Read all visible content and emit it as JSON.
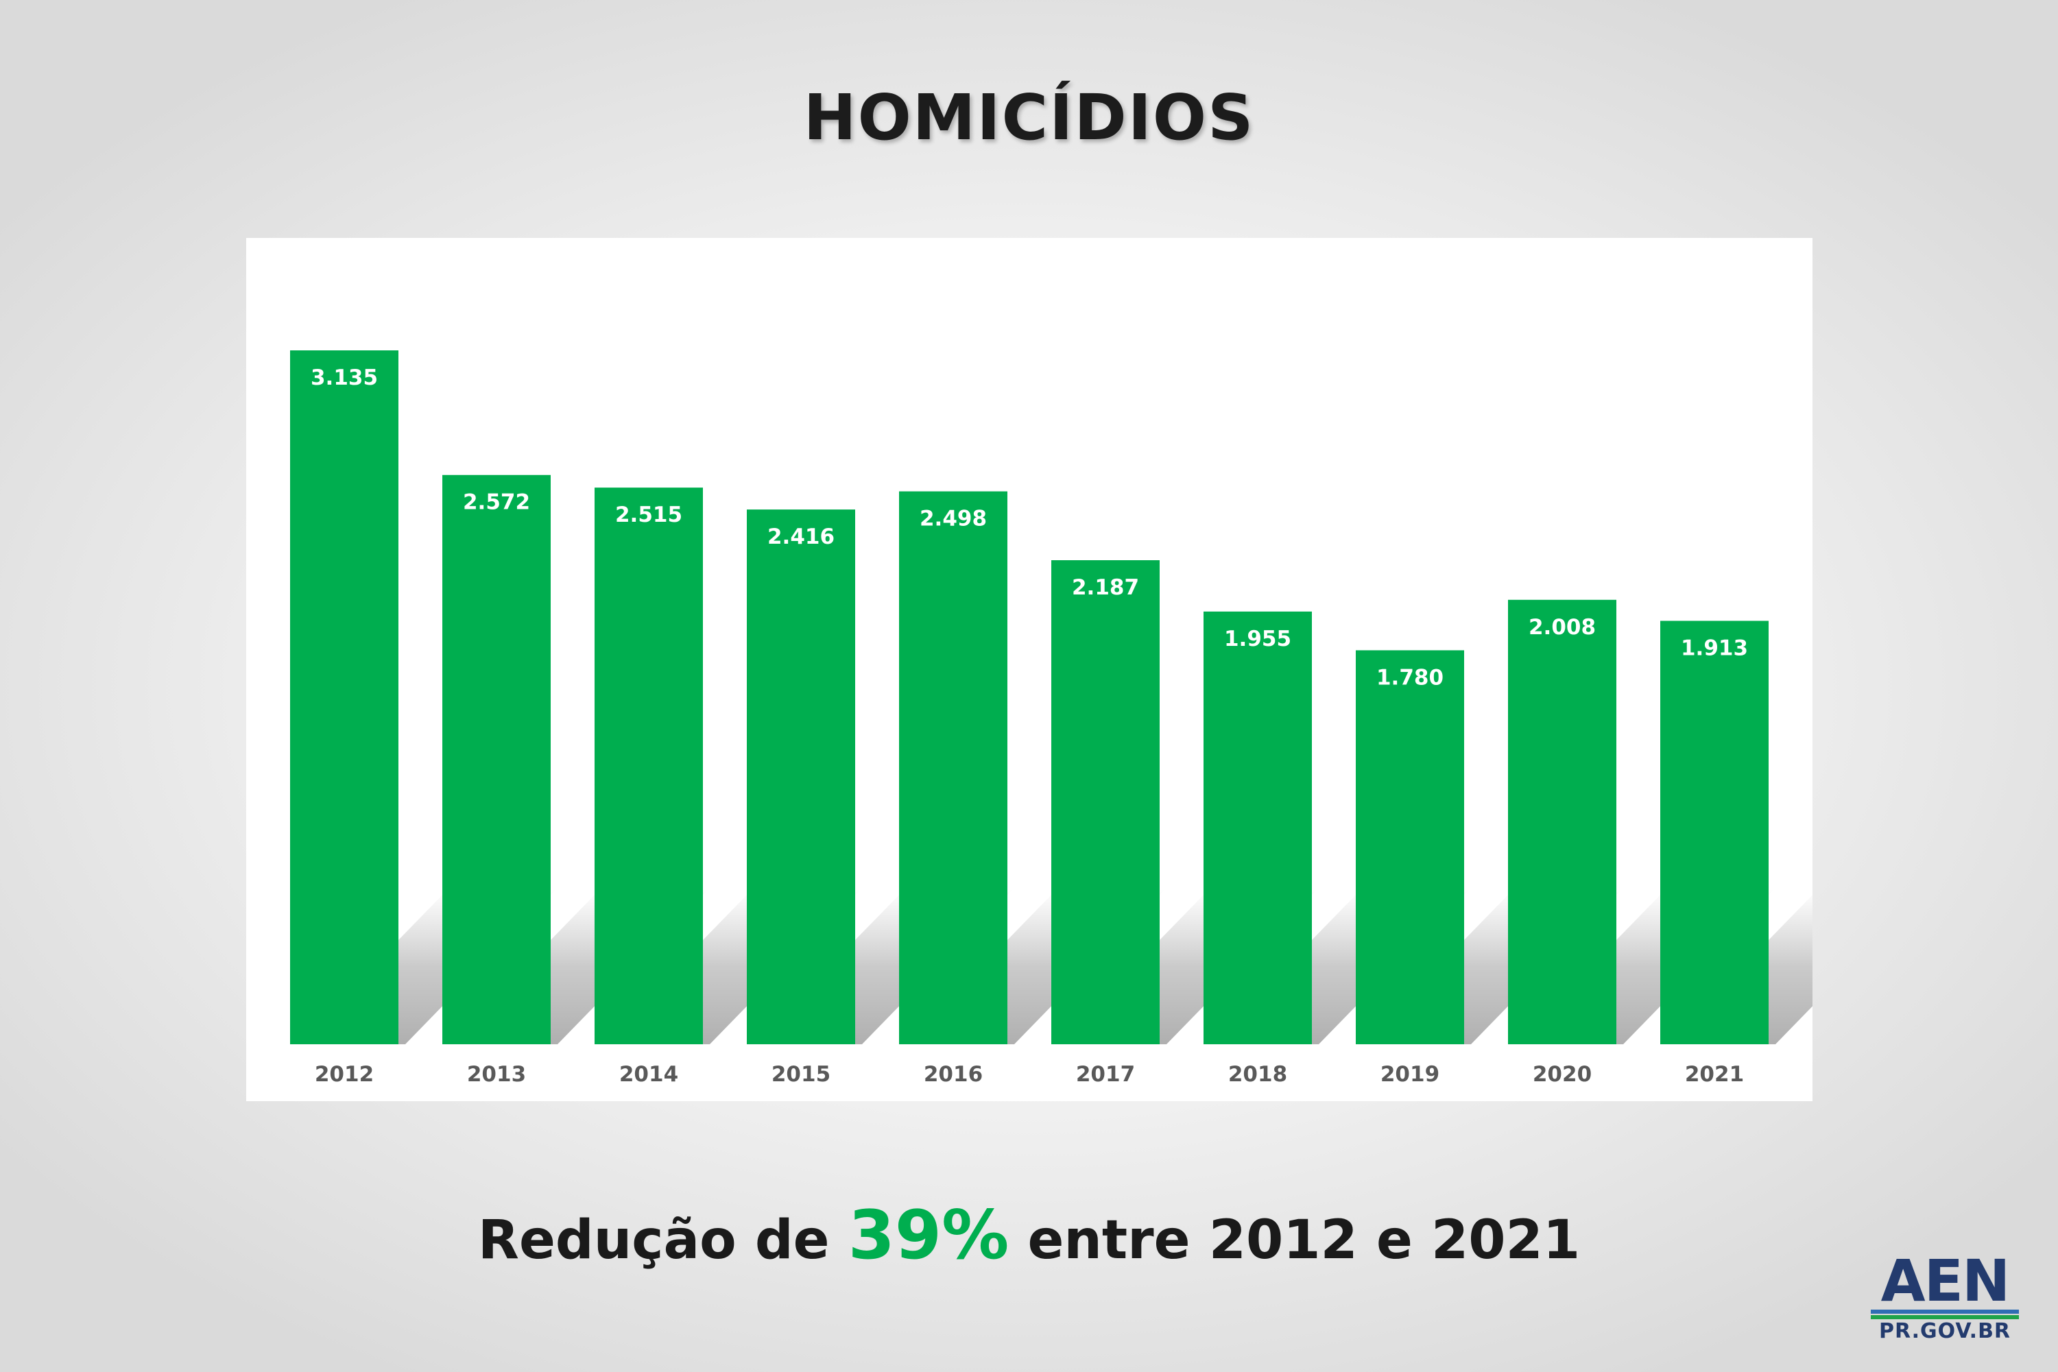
{
  "title": "HOMICÍDIOS",
  "subtitle": {
    "before": "Redução de ",
    "highlight": "39%",
    "after": " entre 2012 e 2021"
  },
  "logo": {
    "mark": "AEN",
    "domain": "PR.GOV.BR"
  },
  "colors": {
    "bar": "#00ae4f",
    "highlight": "#00ae4f",
    "bar_label": "#ffffff",
    "tick_label": "#595959"
  },
  "chart_data": {
    "type": "bar",
    "categories": [
      "2012",
      "2013",
      "2014",
      "2015",
      "2016",
      "2017",
      "2018",
      "2019",
      "2020",
      "2021"
    ],
    "values": [
      3135,
      2572,
      2515,
      2416,
      2498,
      2187,
      1955,
      1780,
      2008,
      1913
    ],
    "data_labels": [
      "3.135",
      "2.572",
      "2.515",
      "2.416",
      "2.498",
      "2.187",
      "1.955",
      "1.780",
      "2.008",
      "1.913"
    ],
    "ylim": [
      0,
      3135
    ],
    "grid": false,
    "legend": "none"
  }
}
